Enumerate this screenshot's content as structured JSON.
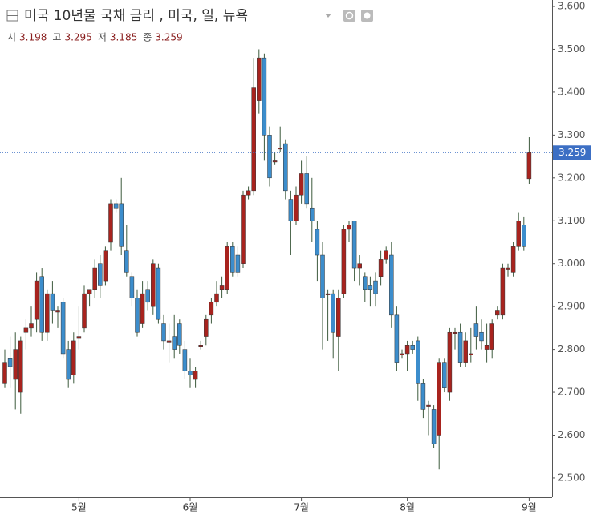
{
  "chart_data": {
    "type": "candlestick",
    "title": "미국 10년물 국채 금리 , 미국, 일, 뉴욕",
    "ohlc_labels": [
      "시",
      "고",
      "저",
      "종"
    ],
    "categories": [
      null,
      null,
      null,
      null,
      null,
      null,
      null,
      null,
      null,
      null,
      null,
      null,
      null,
      null,
      "5월",
      null,
      null,
      null,
      null,
      null,
      null,
      null,
      null,
      null,
      null,
      null,
      null,
      null,
      null,
      null,
      null,
      null,
      null,
      null,
      null,
      "6월",
      null,
      null,
      null,
      null,
      null,
      null,
      null,
      null,
      null,
      null,
      null,
      null,
      null,
      null,
      null,
      null,
      null,
      null,
      null,
      null,
      "7월",
      null,
      null,
      null,
      null,
      null,
      null,
      null,
      null,
      null,
      null,
      null,
      null,
      null,
      null,
      null,
      null,
      null,
      null,
      null,
      "8월",
      null,
      null,
      null,
      null,
      null,
      null,
      null,
      null,
      null,
      null,
      null,
      null,
      null,
      null,
      null,
      null,
      null,
      null,
      null,
      null,
      null,
      null,
      "9월"
    ],
    "open": [
      2.72,
      2.78,
      2.73,
      2.7,
      2.84,
      2.85,
      2.87,
      2.97,
      2.84,
      2.93,
      2.89,
      2.91,
      2.8,
      2.74,
      2.83,
      2.85,
      2.93,
      2.94,
      3.0,
      2.96,
      3.05,
      3.14,
      3.14,
      3.03,
      2.97,
      2.92,
      2.86,
      2.94,
      2.9,
      2.99,
      2.86,
      2.82,
      2.83,
      2.86,
      2.8,
      2.75,
      2.73,
      2.81,
      2.83,
      2.88,
      2.91,
      2.94,
      2.94,
      3.04,
      3.02,
      3.0,
      3.16,
      3.17,
      3.38,
      3.48,
      3.3,
      3.24,
      3.27,
      3.28,
      3.15,
      3.1,
      3.16,
      3.21,
      3.13,
      3.08,
      3.02,
      2.93,
      2.93,
      2.83,
      2.93,
      3.08,
      3.1,
      2.99,
      2.97,
      2.95,
      2.96,
      2.97,
      3.01,
      3.02,
      2.88,
      2.79,
      2.79,
      2.81,
      2.82,
      2.72,
      2.67,
      2.66,
      2.6,
      2.77,
      2.7,
      2.84,
      2.84,
      2.77,
      2.79,
      2.86,
      2.84,
      2.8,
      2.8,
      2.88,
      2.88,
      2.99,
      2.98,
      3.04,
      3.09,
      3.198
    ],
    "high": [
      2.8,
      2.83,
      2.84,
      2.83,
      2.87,
      2.9,
      2.98,
      2.99,
      2.94,
      2.96,
      2.9,
      2.92,
      2.82,
      2.84,
      2.9,
      2.95,
      2.94,
      3.01,
      3.02,
      3.04,
      3.15,
      3.15,
      3.2,
      3.09,
      2.98,
      2.94,
      2.96,
      2.96,
      3.01,
      3.0,
      2.88,
      2.86,
      2.88,
      2.87,
      2.82,
      2.78,
      2.76,
      2.82,
      2.88,
      2.92,
      2.96,
      2.97,
      3.05,
      3.05,
      3.04,
      3.17,
      3.18,
      3.48,
      3.5,
      3.49,
      3.32,
      3.26,
      3.32,
      3.29,
      3.17,
      3.18,
      3.24,
      3.25,
      3.2,
      3.1,
      3.05,
      2.94,
      2.94,
      2.94,
      3.09,
      3.1,
      3.1,
      3.02,
      2.98,
      2.97,
      2.98,
      3.03,
      3.04,
      3.05,
      2.9,
      2.8,
      2.82,
      2.82,
      2.83,
      2.73,
      2.68,
      2.67,
      2.78,
      2.78,
      2.85,
      2.85,
      2.86,
      2.84,
      2.85,
      2.9,
      2.87,
      2.86,
      2.87,
      2.9,
      3.0,
      3.0,
      3.05,
      3.12,
      3.11,
      3.295
    ],
    "low": [
      2.71,
      2.71,
      2.66,
      2.65,
      2.8,
      2.83,
      2.84,
      2.82,
      2.82,
      2.86,
      2.85,
      2.78,
      2.71,
      2.72,
      2.8,
      2.84,
      2.9,
      2.92,
      2.92,
      2.95,
      3.03,
      3.12,
      3.02,
      2.97,
      2.9,
      2.83,
      2.85,
      2.89,
      2.88,
      2.86,
      2.8,
      2.77,
      2.78,
      2.79,
      2.73,
      2.71,
      2.71,
      2.8,
      2.81,
      2.86,
      2.9,
      2.92,
      2.93,
      2.97,
      2.97,
      2.99,
      3.15,
      3.16,
      3.35,
      3.24,
      3.18,
      3.23,
      3.26,
      3.15,
      3.02,
      3.09,
      3.14,
      3.13,
      3.05,
      2.96,
      2.8,
      2.82,
      2.78,
      2.75,
      2.92,
      3.05,
      2.96,
      2.95,
      2.91,
      2.9,
      2.9,
      2.95,
      3.0,
      2.85,
      2.75,
      2.78,
      2.75,
      2.79,
      2.68,
      2.64,
      2.6,
      2.57,
      2.52,
      2.7,
      2.68,
      2.8,
      2.76,
      2.76,
      2.77,
      2.8,
      2.8,
      2.77,
      2.78,
      2.87,
      2.87,
      2.97,
      2.97,
      3.03,
      3.03,
      3.185
    ],
    "close": [
      2.77,
      2.76,
      2.8,
      2.82,
      2.85,
      2.86,
      2.96,
      2.84,
      2.93,
      2.89,
      2.89,
      2.79,
      2.73,
      2.82,
      2.83,
      2.93,
      2.94,
      2.99,
      2.95,
      3.03,
      3.14,
      3.13,
      3.04,
      2.98,
      2.92,
      2.84,
      2.93,
      2.91,
      3.0,
      2.87,
      2.82,
      2.82,
      2.8,
      2.81,
      2.75,
      2.74,
      2.75,
      2.81,
      2.87,
      2.91,
      2.93,
      2.95,
      3.04,
      2.98,
      2.98,
      3.16,
      3.17,
      3.41,
      3.48,
      3.3,
      3.2,
      3.24,
      3.27,
      3.17,
      3.1,
      3.16,
      3.21,
      3.14,
      3.1,
      3.02,
      2.92,
      2.93,
      2.84,
      2.92,
      3.08,
      3.09,
      2.99,
      3.0,
      2.94,
      2.94,
      2.93,
      3.01,
      3.03,
      2.88,
      2.77,
      2.79,
      2.81,
      2.8,
      2.72,
      2.66,
      2.67,
      2.58,
      2.77,
      2.71,
      2.84,
      2.84,
      2.77,
      2.82,
      2.79,
      2.83,
      2.82,
      2.81,
      2.86,
      2.89,
      2.99,
      2.99,
      3.04,
      3.1,
      3.04,
      3.259
    ],
    "up_color": "#a8231e",
    "down_color": "#3c8dcc",
    "ylim": [
      2.455,
      3.615
    ],
    "yticks": [
      {
        "value": 2.5,
        "label": "2.500"
      },
      {
        "value": 2.6,
        "label": "2.600"
      },
      {
        "value": 2.7,
        "label": "2.700"
      },
      {
        "value": 2.8,
        "label": "2.800"
      },
      {
        "value": 2.9,
        "label": "2.900"
      },
      {
        "value": 3.0,
        "label": "3.000"
      },
      {
        "value": 3.1,
        "label": "3.100"
      },
      {
        "value": 3.2,
        "label": "3.200"
      },
      {
        "value": 3.3,
        "label": "3.300"
      },
      {
        "value": 3.4,
        "label": "3.400"
      },
      {
        "value": 3.5,
        "label": "3.500"
      },
      {
        "value": 3.6,
        "label": "3.600"
      }
    ]
  }
}
